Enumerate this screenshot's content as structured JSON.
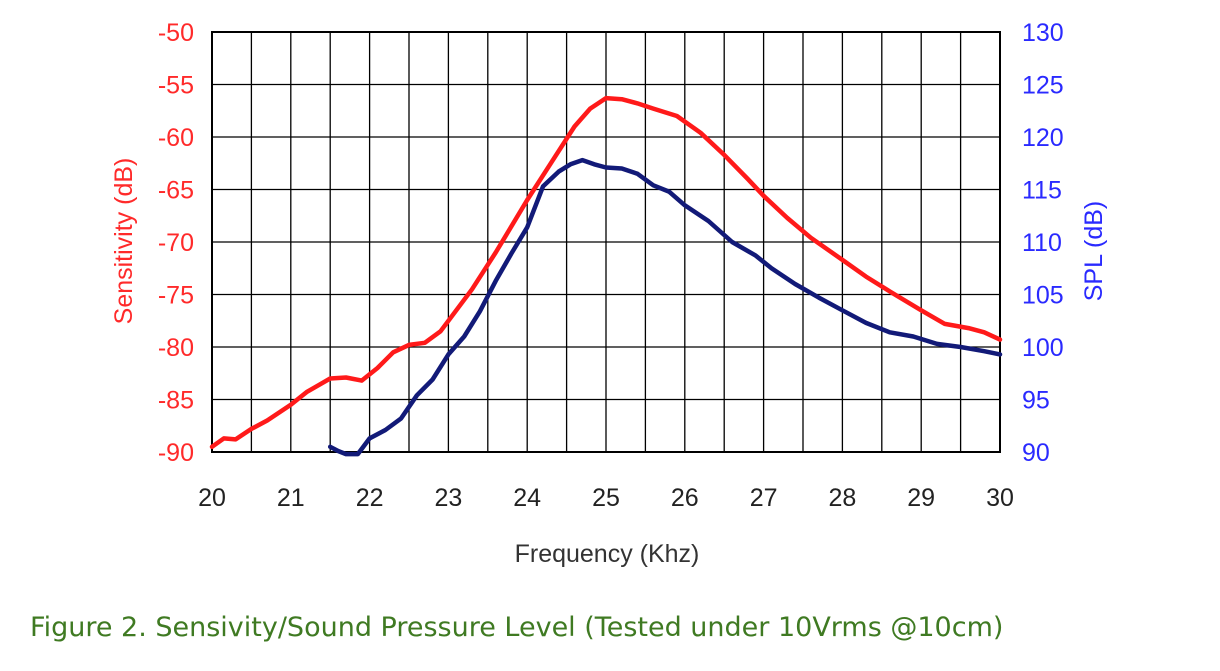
{
  "caption": "Figure 2. Sensivity/Sound Pressure Level (Tested under 10Vrms @10cm)",
  "colors": {
    "sensitivity": "#ff1a1a",
    "spl": "#121a78",
    "left_axis": "#ff2a2a",
    "right_axis": "#2a2aff",
    "grid": "#000000",
    "caption": "#3f7a22"
  },
  "chart_data": {
    "type": "line",
    "title": "",
    "xlabel": "Frequency (Khz)",
    "ylabel_left": "Sensitivity (dB)",
    "ylabel_right": "SPL (dB)",
    "xlim": [
      20,
      30
    ],
    "ylim_left": [
      -90,
      -50
    ],
    "ylim_right": [
      90,
      130
    ],
    "x_ticks": [
      "20",
      "21",
      "22",
      "23",
      "24",
      "25",
      "26",
      "27",
      "28",
      "29",
      "30"
    ],
    "y_left_ticks": [
      "-50",
      "-55",
      "-60",
      "-65",
      "-70",
      "-75",
      "-80",
      "-85",
      "-90"
    ],
    "y_right_ticks": [
      "130",
      "125",
      "120",
      "115",
      "110",
      "105",
      "100",
      "95",
      "90"
    ],
    "grid": true,
    "x_minor_gridlines_per_unit": 2,
    "series": [
      {
        "axis": "left",
        "points": [
          [
            20.0,
            -89.5
          ],
          [
            20.15,
            -88.7
          ],
          [
            20.3,
            -88.8
          ],
          [
            20.5,
            -87.8
          ],
          [
            20.7,
            -87.0
          ],
          [
            21.0,
            -85.5
          ],
          [
            21.2,
            -84.3
          ],
          [
            21.5,
            -83.0
          ],
          [
            21.7,
            -82.9
          ],
          [
            21.9,
            -83.2
          ],
          [
            22.1,
            -82.0
          ],
          [
            22.3,
            -80.5
          ],
          [
            22.5,
            -79.8
          ],
          [
            22.7,
            -79.6
          ],
          [
            22.9,
            -78.5
          ],
          [
            23.0,
            -77.5
          ],
          [
            23.3,
            -74.5
          ],
          [
            23.6,
            -71.0
          ],
          [
            24.0,
            -66.0
          ],
          [
            24.3,
            -62.5
          ],
          [
            24.6,
            -59.0
          ],
          [
            24.8,
            -57.3
          ],
          [
            25.0,
            -56.3
          ],
          [
            25.2,
            -56.4
          ],
          [
            25.4,
            -56.8
          ],
          [
            25.6,
            -57.3
          ],
          [
            25.9,
            -58.0
          ],
          [
            26.2,
            -59.6
          ],
          [
            26.5,
            -61.7
          ],
          [
            26.8,
            -64.0
          ],
          [
            27.0,
            -65.6
          ],
          [
            27.3,
            -67.7
          ],
          [
            27.6,
            -69.6
          ],
          [
            28.0,
            -71.7
          ],
          [
            28.3,
            -73.3
          ],
          [
            28.6,
            -74.7
          ],
          [
            29.0,
            -76.5
          ],
          [
            29.3,
            -77.8
          ],
          [
            29.6,
            -78.2
          ],
          [
            29.8,
            -78.6
          ],
          [
            30.0,
            -79.3
          ]
        ]
      },
      {
        "axis": "right",
        "points": [
          [
            21.5,
            90.5
          ],
          [
            21.6,
            90.1
          ],
          [
            21.7,
            89.8
          ],
          [
            21.85,
            89.8
          ],
          [
            22.0,
            91.3
          ],
          [
            22.2,
            92.1
          ],
          [
            22.4,
            93.2
          ],
          [
            22.6,
            95.4
          ],
          [
            22.8,
            96.9
          ],
          [
            23.0,
            99.3
          ],
          [
            23.2,
            101.0
          ],
          [
            23.4,
            103.4
          ],
          [
            23.6,
            106.3
          ],
          [
            23.8,
            108.9
          ],
          [
            24.0,
            111.4
          ],
          [
            24.2,
            115.3
          ],
          [
            24.4,
            116.7
          ],
          [
            24.55,
            117.4
          ],
          [
            24.7,
            117.8
          ],
          [
            24.85,
            117.4
          ],
          [
            25.0,
            117.1
          ],
          [
            25.2,
            117.0
          ],
          [
            25.4,
            116.5
          ],
          [
            25.6,
            115.4
          ],
          [
            25.8,
            114.8
          ],
          [
            26.0,
            113.5
          ],
          [
            26.3,
            112.0
          ],
          [
            26.6,
            110.0
          ],
          [
            26.9,
            108.7
          ],
          [
            27.1,
            107.5
          ],
          [
            27.4,
            106.0
          ],
          [
            27.7,
            104.7
          ],
          [
            28.0,
            103.5
          ],
          [
            28.3,
            102.3
          ],
          [
            28.6,
            101.4
          ],
          [
            28.9,
            101.0
          ],
          [
            29.2,
            100.3
          ],
          [
            29.5,
            100.0
          ],
          [
            29.8,
            99.6
          ],
          [
            30.0,
            99.3
          ]
        ]
      }
    ]
  }
}
